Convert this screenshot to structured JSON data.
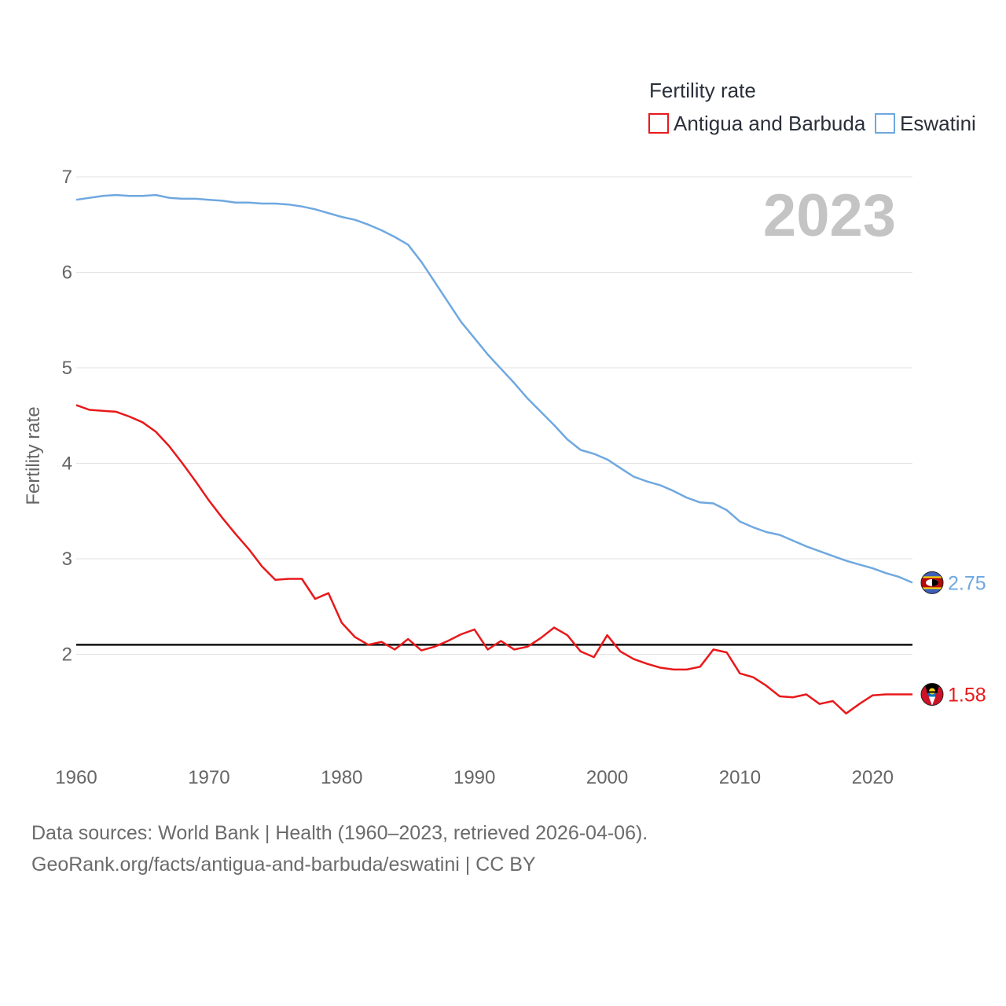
{
  "chart_data": {
    "type": "line",
    "legend_title": "Fertility rate",
    "year_label": "2023",
    "ylabel": "Fertility rate",
    "xlim": [
      1960,
      2023
    ],
    "ylim": [
      1.0,
      7.0
    ],
    "x_ticks": [
      1960,
      1970,
      1980,
      1990,
      2000,
      2010,
      2020
    ],
    "y_ticks": [
      2,
      3,
      4,
      5,
      6,
      7
    ],
    "reference_line": 2.1,
    "x": [
      1960,
      1961,
      1962,
      1963,
      1964,
      1965,
      1966,
      1967,
      1968,
      1969,
      1970,
      1971,
      1972,
      1973,
      1974,
      1975,
      1976,
      1977,
      1978,
      1979,
      1980,
      1981,
      1982,
      1983,
      1984,
      1985,
      1986,
      1987,
      1988,
      1989,
      1990,
      1991,
      1992,
      1993,
      1994,
      1995,
      1996,
      1997,
      1998,
      1999,
      2000,
      2001,
      2002,
      2003,
      2004,
      2005,
      2006,
      2007,
      2008,
      2009,
      2010,
      2011,
      2012,
      2013,
      2014,
      2015,
      2016,
      2017,
      2018,
      2019,
      2020,
      2021,
      2022,
      2023
    ],
    "series": [
      {
        "name": "Antigua and Barbuda",
        "color": "#e8191b",
        "end_label": "1.58",
        "flag": "antigua-flag",
        "values": [
          4.61,
          4.56,
          4.55,
          4.54,
          4.49,
          4.43,
          4.33,
          4.18,
          4.0,
          3.81,
          3.61,
          3.43,
          3.26,
          3.1,
          2.92,
          2.78,
          2.79,
          2.79,
          2.58,
          2.64,
          2.33,
          2.18,
          2.1,
          2.13,
          2.05,
          2.16,
          2.04,
          2.08,
          2.14,
          2.21,
          2.26,
          2.05,
          2.14,
          2.05,
          2.08,
          2.17,
          2.28,
          2.2,
          2.03,
          1.97,
          2.2,
          2.03,
          1.95,
          1.9,
          1.86,
          1.84,
          1.84,
          1.87,
          2.05,
          2.02,
          1.8,
          1.76,
          1.67,
          1.56,
          1.55,
          1.58,
          1.48,
          1.51,
          1.38,
          1.48,
          1.57,
          1.58,
          1.58,
          1.58
        ]
      },
      {
        "name": "Eswatini",
        "color": "#6fa8e0",
        "end_label": "2.75",
        "flag": "eswatini-flag",
        "values": [
          6.76,
          6.78,
          6.8,
          6.81,
          6.8,
          6.8,
          6.81,
          6.78,
          6.77,
          6.77,
          6.76,
          6.75,
          6.73,
          6.73,
          6.72,
          6.72,
          6.71,
          6.69,
          6.66,
          6.62,
          6.58,
          6.55,
          6.5,
          6.44,
          6.37,
          6.29,
          6.11,
          5.9,
          5.69,
          5.48,
          5.31,
          5.14,
          4.99,
          4.84,
          4.68,
          4.54,
          4.4,
          4.25,
          4.14,
          4.1,
          4.04,
          3.95,
          3.86,
          3.81,
          3.77,
          3.71,
          3.64,
          3.59,
          3.58,
          3.51,
          3.39,
          3.33,
          3.28,
          3.25,
          3.19,
          3.13,
          3.08,
          3.03,
          2.98,
          2.94,
          2.9,
          2.85,
          2.81,
          2.75
        ]
      }
    ]
  },
  "source": {
    "line1": "Data sources: World Bank | Health (1960–2023, retrieved 2026-04-06).",
    "line2": "GeoRank.org/facts/antigua-and-barbuda/eswatini | CC BY"
  }
}
